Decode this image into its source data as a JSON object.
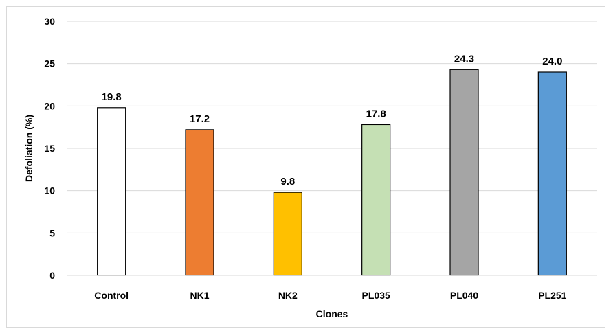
{
  "chart_data": {
    "type": "bar",
    "title": "",
    "xlabel": "Clones",
    "ylabel": "Defoliation (%)",
    "ylim": [
      0,
      30
    ],
    "yticks": [
      0,
      5,
      10,
      15,
      20,
      25,
      30
    ],
    "categories": [
      "Control",
      "NK1",
      "NK2",
      "PL035",
      "PL040",
      "PL251"
    ],
    "values": [
      19.8,
      17.2,
      9.8,
      17.8,
      24.3,
      24.0
    ],
    "value_labels": [
      "19.8",
      "17.2",
      "9.8",
      "17.8",
      "24.3",
      "24.0"
    ],
    "colors": [
      "#ffffff",
      "#ed7d31",
      "#ffc000",
      "#c5e0b4",
      "#a5a5a5",
      "#5b9bd5"
    ],
    "gridlines": true,
    "legend": "none"
  }
}
